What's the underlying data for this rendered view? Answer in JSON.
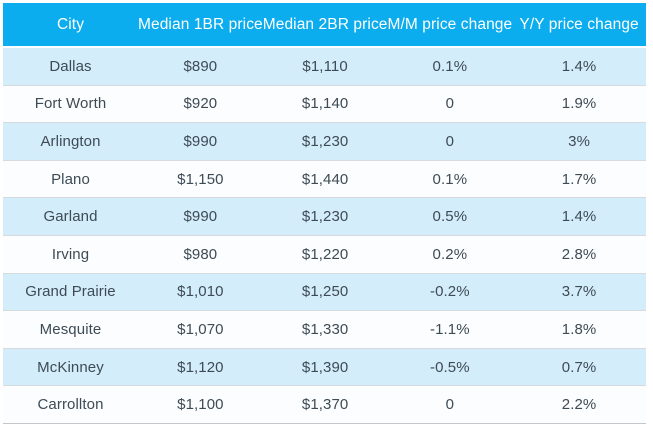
{
  "colors": {
    "header_bg": "#0badee",
    "header_text": "#ffffff",
    "row_stripe": "#d4edfa",
    "row_even": "#fcfdfe",
    "cell_text": "#3d4b55",
    "row_border": "#d7dadc",
    "bottom_border": "#c4c7c9"
  },
  "chart_data": {
    "type": "table",
    "title": "",
    "columns": [
      "City",
      "Median 1BR price",
      "Median 2BR price",
      "M/M price change",
      "Y/Y price change"
    ],
    "column_keys": [
      "city",
      "median-1br-price",
      "median-2br-price",
      "mm-price-change",
      "yy-price-change"
    ],
    "rows": [
      [
        "Dallas",
        "$890",
        "$1,110",
        "0.1%",
        "1.4%"
      ],
      [
        "Fort Worth",
        "$920",
        "$1,140",
        "0",
        "1.9%"
      ],
      [
        "Arlington",
        "$990",
        "$1,230",
        "0",
        "3%"
      ],
      [
        "Plano",
        "$1,150",
        "$1,440",
        "0.1%",
        "1.7%"
      ],
      [
        "Garland",
        "$990",
        "$1,230",
        "0.5%",
        "1.4%"
      ],
      [
        "Irving",
        "$980",
        "$1,220",
        "0.2%",
        "2.8%"
      ],
      [
        "Grand Prairie",
        "$1,010",
        "$1,250",
        "-0.2%",
        "3.7%"
      ],
      [
        "Mesquite",
        "$1,070",
        "$1,330",
        "-1.1%",
        "1.8%"
      ],
      [
        "McKinney",
        "$1,120",
        "$1,390",
        "-0.5%",
        "0.7%"
      ],
      [
        "Carrollton",
        "$1,100",
        "$1,370",
        "0",
        "2.2%"
      ]
    ]
  }
}
